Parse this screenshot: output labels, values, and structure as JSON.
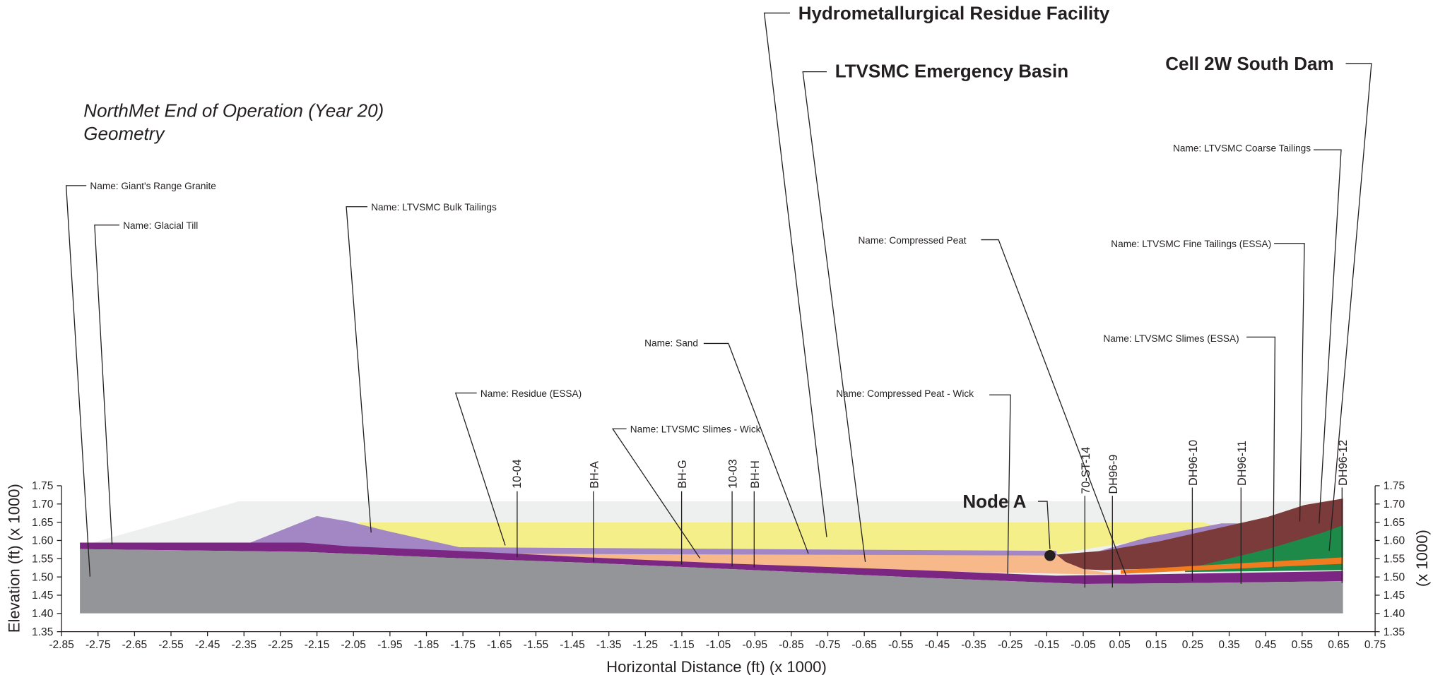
{
  "chart_data": {
    "type": "cross-section",
    "title": [
      "NorthMet End of Operation (Year 20)",
      "Geometry"
    ],
    "x_label": "Horizontal Distance (ft) (x  1000)",
    "y_label": "Elevation (ft) (x  1000)",
    "y2_label": "(x  1000)",
    "xlim": [
      -2.85,
      0.75
    ],
    "xticks": [
      -2.85,
      -2.75,
      -2.65,
      -2.55,
      -2.45,
      -2.35,
      -2.25,
      -2.15,
      -2.05,
      -1.95,
      -1.85,
      -1.75,
      -1.65,
      -1.55,
      -1.45,
      -1.35,
      -1.25,
      -1.15,
      -1.05,
      -0.95,
      -0.85,
      -0.75,
      -0.65,
      -0.55,
      -0.45,
      -0.35,
      -0.25,
      -0.15,
      -0.05,
      0.05,
      0.15,
      0.25,
      0.35,
      0.45,
      0.55,
      0.65,
      0.75
    ],
    "ylim": [
      1.35,
      1.75
    ],
    "yticks": [
      1.35,
      {
        "value": 1.4,
        "label": "1.40"
      },
      1.45,
      {
        "value": 1.5,
        "label": "1.50"
      },
      1.55,
      {
        "value": 1.6,
        "label": "1.60"
      },
      1.65,
      {
        "value": 1.7,
        "label": "1.70"
      },
      1.75
    ],
    "y2lim": [
      1.35,
      1.75
    ],
    "y2ticks": [
      1.35,
      {
        "value": 1.4,
        "label": "1.40"
      },
      1.45,
      {
        "value": 1.5,
        "label": "1.50"
      },
      1.55,
      {
        "value": 1.6,
        "label": "1.60"
      },
      1.65,
      {
        "value": 1.7,
        "label": "1.70"
      },
      1.75
    ],
    "facilities": [
      "Hydrometallurgical Residue Facility",
      "LTVSMC Emergency Basin",
      "Cell 2W South Dam"
    ],
    "materials": [
      "Name: Giant's Range Granite",
      "Name: Glacial Till",
      "Name: LTVSMC Bulk Tailings",
      "Name: Residue (ESSA)",
      "Name: LTVSMC Slimes - Wick",
      "Name: Sand",
      "Name: Compressed Peat - Wick",
      "Name: Compressed Peat",
      "Name: LTVSMC Coarse Tailings",
      "Name: LTVSMC Fine Tailings (ESSA)",
      "Name: LTVSMC Slimes (ESSA)"
    ],
    "boreholes": [
      "10-04",
      "BH-A",
      "BH-G",
      "10-03",
      "BH-H",
      "70-ST-14",
      "DH96-9",
      "DH96-10",
      "DH96-11",
      "DH96-12"
    ],
    "node_label": "Node A"
  }
}
